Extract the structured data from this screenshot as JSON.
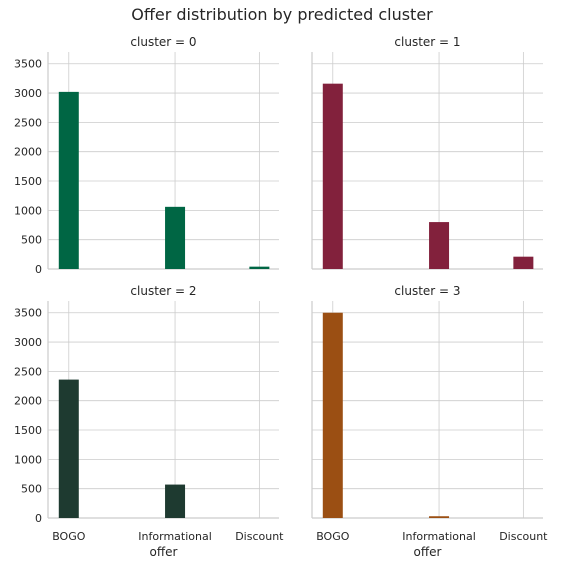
{
  "chart_data": {
    "type": "bar",
    "title": "Offer distribution by predicted cluster",
    "xlabel": "offer",
    "ylabel": "",
    "categories": [
      "BOGO",
      "Informational",
      "Discount"
    ],
    "ylim": [
      0,
      3700
    ],
    "yticks": [
      0,
      500,
      1000,
      1500,
      2000,
      2500,
      3000,
      3500
    ],
    "grid": true,
    "panels": [
      {
        "title": "cluster = 0",
        "color": "#006644",
        "values": [
          3020,
          1060,
          40
        ]
      },
      {
        "title": "cluster = 1",
        "color": "#82213c",
        "values": [
          3160,
          800,
          210
        ]
      },
      {
        "title": "cluster = 2",
        "color": "#1e3a30",
        "values": [
          2360,
          570,
          0
        ]
      },
      {
        "title": "cluster = 3",
        "color": "#9b4f13",
        "values": [
          3500,
          30,
          0
        ]
      }
    ]
  }
}
